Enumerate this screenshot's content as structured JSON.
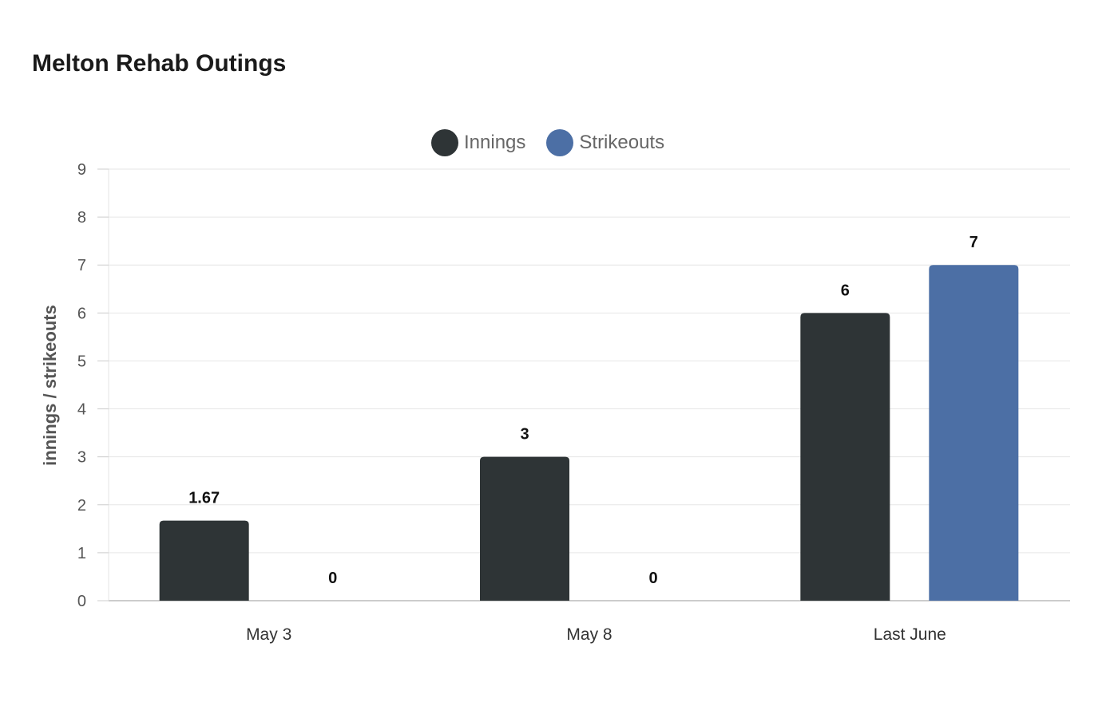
{
  "chart_data": {
    "type": "bar",
    "title": "Melton Rehab Outings",
    "categories": [
      "May 3",
      "May 8",
      "Last June"
    ],
    "series": [
      {
        "name": "Innings",
        "values": [
          1.67,
          3,
          6
        ],
        "color": "#2e3436"
      },
      {
        "name": "Strikeouts",
        "values": [
          0,
          0,
          7
        ],
        "color": "#4c6fa5"
      }
    ],
    "xlabel": "",
    "ylabel": "innings / strikeouts",
    "ylim": [
      0,
      9
    ],
    "yticks": [
      0,
      1,
      2,
      3,
      4,
      5,
      6,
      7,
      8,
      9
    ],
    "grid": true,
    "legend_position": "top-center"
  }
}
